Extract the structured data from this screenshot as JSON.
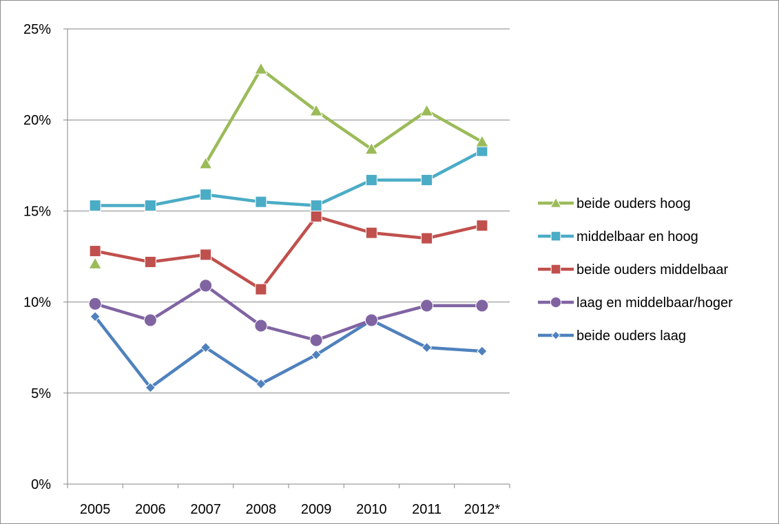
{
  "chart_data": {
    "type": "line",
    "title": "",
    "xlabel": "",
    "ylabel": "",
    "categories": [
      "2005",
      "2006",
      "2007",
      "2008",
      "2009",
      "2010",
      "2011",
      "2012*"
    ],
    "ylim": [
      0,
      25
    ],
    "yticks": [
      0,
      5,
      10,
      15,
      20,
      25
    ],
    "ytick_labels": [
      "0%",
      "5%",
      "10%",
      "15%",
      "20%",
      "25%"
    ],
    "grid": true,
    "legend_position": "right",
    "series": [
      {
        "name": "beide ouders hoog",
        "color": "#9bbb59",
        "marker": "triangle",
        "values": [
          12.1,
          null,
          17.6,
          22.8,
          20.5,
          18.4,
          20.5,
          18.8
        ]
      },
      {
        "name": "middelbaar en hoog",
        "color": "#4bacc6",
        "marker": "square",
        "values": [
          15.3,
          15.3,
          15.9,
          15.5,
          15.3,
          16.7,
          16.7,
          18.3
        ]
      },
      {
        "name": "beide ouders middelbaar",
        "color": "#c0504d",
        "marker": "square",
        "values": [
          12.8,
          12.2,
          12.6,
          10.7,
          14.7,
          13.8,
          13.5,
          14.2
        ]
      },
      {
        "name": "laag en middelbaar/hoger",
        "color": "#8064a2",
        "marker": "circle",
        "values": [
          9.9,
          9.0,
          10.9,
          8.7,
          7.9,
          9.0,
          9.8,
          9.8
        ]
      },
      {
        "name": "beide ouders laag",
        "color": "#4f81bd",
        "marker": "diamond",
        "values": [
          9.2,
          5.3,
          7.5,
          5.5,
          7.1,
          9.0,
          7.5,
          7.3
        ]
      }
    ]
  }
}
